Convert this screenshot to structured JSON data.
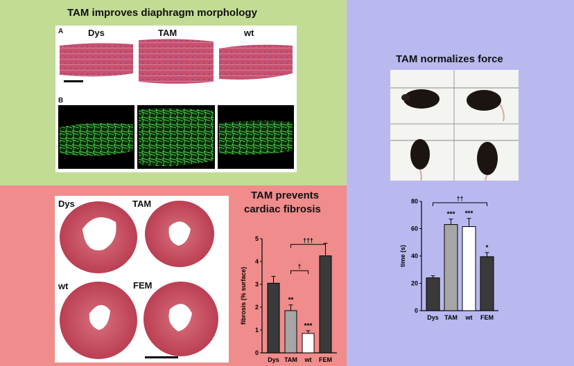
{
  "panels": {
    "diaphragm": {
      "title": "TAM improves diaphragm morphology",
      "row_a_label": "A",
      "row_b_label": "B",
      "columns": [
        "Dys",
        "TAM",
        "wt"
      ]
    },
    "force": {
      "title": "TAM normalizes force"
    },
    "heart": {
      "labels": [
        "Dys",
        "TAM",
        "wt",
        "FEM"
      ]
    },
    "fibrosis": {
      "title_line1": "TAM prevents",
      "title_line2": "cardiac fibrosis"
    }
  },
  "chart_data": [
    {
      "type": "bar",
      "name_hint": "fibrosis",
      "categories": [
        "Dys",
        "TAM",
        "wt",
        "FEM"
      ],
      "values": [
        3.05,
        1.85,
        0.85,
        4.25
      ],
      "errors": [
        0.3,
        0.25,
        0.12,
        0.55
      ],
      "significance": [
        "",
        "**",
        "***",
        ""
      ],
      "colors": [
        "#3a3a3a",
        "#a6a6a6",
        "#ffffff",
        "#3a3a3a"
      ],
      "ylabel": "fibrosis (% surface)",
      "yticks": [
        "0",
        "1",
        "2",
        "3",
        "4",
        "5"
      ],
      "ylim": [
        0,
        5
      ],
      "brackets": [
        {
          "from": "TAM",
          "to": "wt",
          "label": "†"
        },
        {
          "from": "TAM",
          "to": "FEM",
          "label": "†††"
        }
      ]
    },
    {
      "type": "bar",
      "name_hint": "force",
      "categories": [
        "Dys",
        "TAM",
        "wt",
        "FEM"
      ],
      "values": [
        24,
        63,
        61.5,
        39.5
      ],
      "errors": [
        1.5,
        4,
        6,
        3
      ],
      "significance": [
        "",
        "***",
        "***",
        "*"
      ],
      "colors": [
        "#3a3a3a",
        "#a6a6a6",
        "#ffffff",
        "#3a3a3a"
      ],
      "ylabel": "time (s)",
      "yticks": [
        "0",
        "20",
        "40",
        "60",
        "80"
      ],
      "ylim": [
        0,
        80
      ],
      "brackets": [
        {
          "from": "Dys",
          "to": "FEM",
          "label": "††"
        }
      ]
    }
  ]
}
